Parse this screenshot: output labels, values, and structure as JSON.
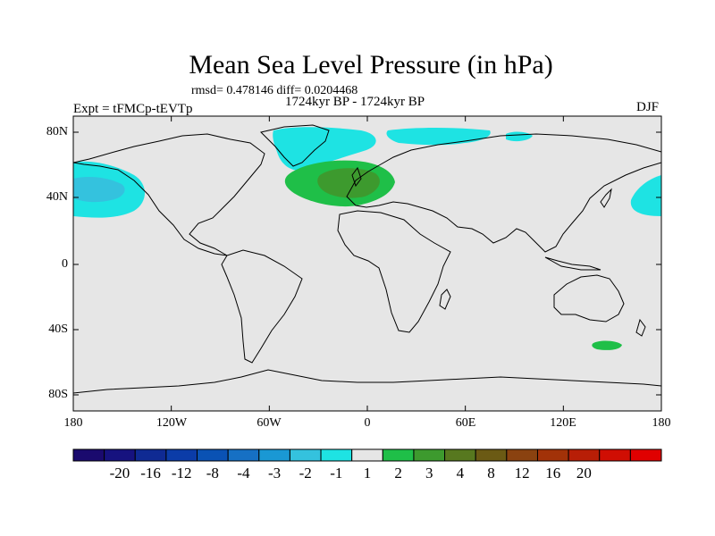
{
  "title": "Mean Sea Level Pressure (in hPa)",
  "stats": "rmsd= 0.478146 diff= 0.0204468",
  "period": "1724kyr BP - 1724kyr BP",
  "experiment": "Expt = tFMCp-tEVTp",
  "season": "DJF",
  "map": {
    "background_color": "#e6e6e6",
    "lat_labels": [
      "80N",
      "40N",
      "0",
      "40S",
      "80S"
    ],
    "lon_labels": [
      "180",
      "120W",
      "60W",
      "0",
      "60E",
      "120E",
      "180"
    ]
  },
  "colorbar": {
    "labels": [
      "-20",
      "-16",
      "-12",
      "-8",
      "-4",
      "-3",
      "-2",
      "-1",
      "1",
      "2",
      "3",
      "4",
      "8",
      "12",
      "16",
      "20"
    ],
    "colors": [
      "#1a0a6e",
      "#16127f",
      "#0f2a93",
      "#0b3ca8",
      "#0a52b4",
      "#1670c4",
      "#1a98d4",
      "#34c2de",
      "#1ee3e3",
      "#e6e6e6",
      "#1fbf48",
      "#3d9a2e",
      "#57781f",
      "#6b5a14",
      "#8a4210",
      "#a23208",
      "#b81e06",
      "#d00e03",
      "#e00000"
    ]
  }
}
